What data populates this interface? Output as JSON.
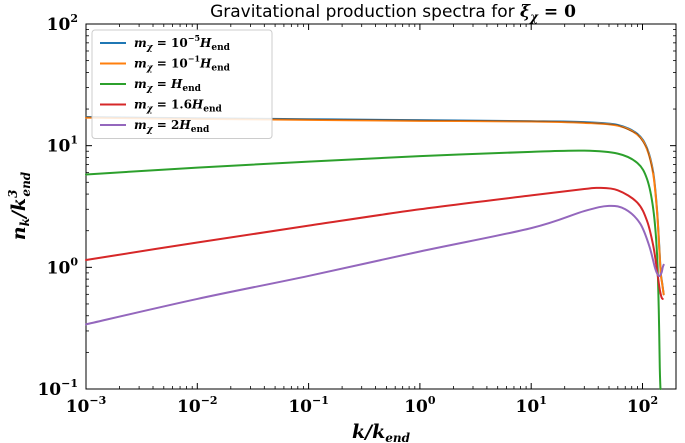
{
  "chart_data": {
    "type": "line",
    "title": "Gravitational production spectra for ξ_χ = 0",
    "xlabel": "k/k_end",
    "ylabel": "n_k/k_end^3",
    "xscale": "log",
    "yscale": "log",
    "xlim": [
      0.001,
      200
    ],
    "ylim": [
      0.1,
      100
    ],
    "x_ticks": [
      {
        "value": 0.001,
        "base": "10",
        "exp": "−3"
      },
      {
        "value": 0.01,
        "base": "10",
        "exp": "−2"
      },
      {
        "value": 0.1,
        "base": "10",
        "exp": "−1"
      },
      {
        "value": 1,
        "base": "10",
        "exp": "0"
      },
      {
        "value": 10,
        "base": "10",
        "exp": "1"
      },
      {
        "value": 100,
        "base": "10",
        "exp": "2"
      }
    ],
    "y_ticks": [
      {
        "value": 0.1,
        "base": "10",
        "exp": "−1"
      },
      {
        "value": 1,
        "base": "10",
        "exp": "0"
      },
      {
        "value": 10,
        "base": "10",
        "exp": "1"
      },
      {
        "value": 100,
        "base": "10",
        "exp": "2"
      }
    ],
    "legend_position": "top-left",
    "series": [
      {
        "name": "m_χ = 10^−5 H_end",
        "label_main": "m",
        "label_sub": "χ",
        "label_mid": " = 10",
        "label_sup": "−5",
        "label_tail": "H",
        "label_tail_sub": "end",
        "color": "#1f77b4",
        "points": [
          [
            0.001,
            17.2
          ],
          [
            0.01,
            16.8
          ],
          [
            0.1,
            16.5
          ],
          [
            1,
            16.2
          ],
          [
            10,
            15.9
          ],
          [
            30,
            15.6
          ],
          [
            60,
            14.8
          ],
          [
            90,
            12.5
          ],
          [
            110,
            9.5
          ],
          [
            125,
            6.0
          ],
          [
            135,
            3.0
          ],
          [
            142,
            1.4
          ],
          [
            146,
            0.9
          ],
          [
            150,
            0.75
          ],
          [
            155,
            0.6
          ]
        ]
      },
      {
        "name": "m_χ = 10^−1 H_end",
        "label_main": "m",
        "label_sub": "χ",
        "label_mid": " = 10",
        "label_sup": "−1",
        "label_tail": "H",
        "label_tail_sub": "end",
        "color": "#ff7f0e",
        "points": [
          [
            0.001,
            17.0
          ],
          [
            0.01,
            16.6
          ],
          [
            0.1,
            16.3
          ],
          [
            1,
            16.0
          ],
          [
            10,
            15.8
          ],
          [
            30,
            15.4
          ],
          [
            60,
            14.6
          ],
          [
            90,
            12.3
          ],
          [
            110,
            9.3
          ],
          [
            125,
            5.8
          ],
          [
            135,
            2.9
          ],
          [
            142,
            1.35
          ],
          [
            146,
            0.88
          ],
          [
            150,
            0.74
          ],
          [
            155,
            0.6
          ]
        ]
      },
      {
        "name": "m_χ = H_end",
        "label_main": "m",
        "label_sub": "χ",
        "label_mid": " = ",
        "label_sup": "",
        "label_tail": "H",
        "label_tail_sub": "end",
        "color": "#2ca02c",
        "points": [
          [
            0.001,
            5.8
          ],
          [
            0.01,
            6.6
          ],
          [
            0.1,
            7.4
          ],
          [
            1,
            8.2
          ],
          [
            10,
            8.9
          ],
          [
            30,
            9.1
          ],
          [
            60,
            8.6
          ],
          [
            90,
            7.2
          ],
          [
            110,
            5.3
          ],
          [
            125,
            3.0
          ],
          [
            135,
            1.3
          ],
          [
            140,
            0.45
          ],
          [
            143,
            0.15
          ],
          [
            145,
            0.1
          ]
        ]
      },
      {
        "name": "m_χ = 1.6H_end",
        "label_main": "m",
        "label_sub": "χ",
        "label_mid": " = 1.6",
        "label_sup": "",
        "label_tail": "H",
        "label_tail_sub": "end",
        "color": "#d62728",
        "points": [
          [
            0.001,
            1.15
          ],
          [
            0.01,
            1.6
          ],
          [
            0.1,
            2.2
          ],
          [
            1,
            3.0
          ],
          [
            10,
            3.9
          ],
          [
            30,
            4.4
          ],
          [
            40,
            4.5
          ],
          [
            60,
            4.3
          ],
          [
            90,
            3.4
          ],
          [
            110,
            2.4
          ],
          [
            125,
            1.5
          ],
          [
            135,
            0.95
          ],
          [
            142,
            0.68
          ],
          [
            148,
            0.57
          ],
          [
            152,
            0.55
          ]
        ]
      },
      {
        "name": "m_χ = 2H_end",
        "label_main": "m",
        "label_sub": "χ",
        "label_mid": " = 2",
        "label_sup": "",
        "label_tail": "H",
        "label_tail_sub": "end",
        "color": "#9467bd",
        "points": [
          [
            0.001,
            0.34
          ],
          [
            0.01,
            0.55
          ],
          [
            0.1,
            0.85
          ],
          [
            1,
            1.35
          ],
          [
            10,
            2.1
          ],
          [
            30,
            2.9
          ],
          [
            50,
            3.2
          ],
          [
            70,
            3.0
          ],
          [
            95,
            2.3
          ],
          [
            115,
            1.5
          ],
          [
            130,
            0.98
          ],
          [
            140,
            0.85
          ],
          [
            148,
            0.9
          ],
          [
            152,
            1.0
          ],
          [
            155,
            1.05
          ]
        ]
      }
    ]
  }
}
